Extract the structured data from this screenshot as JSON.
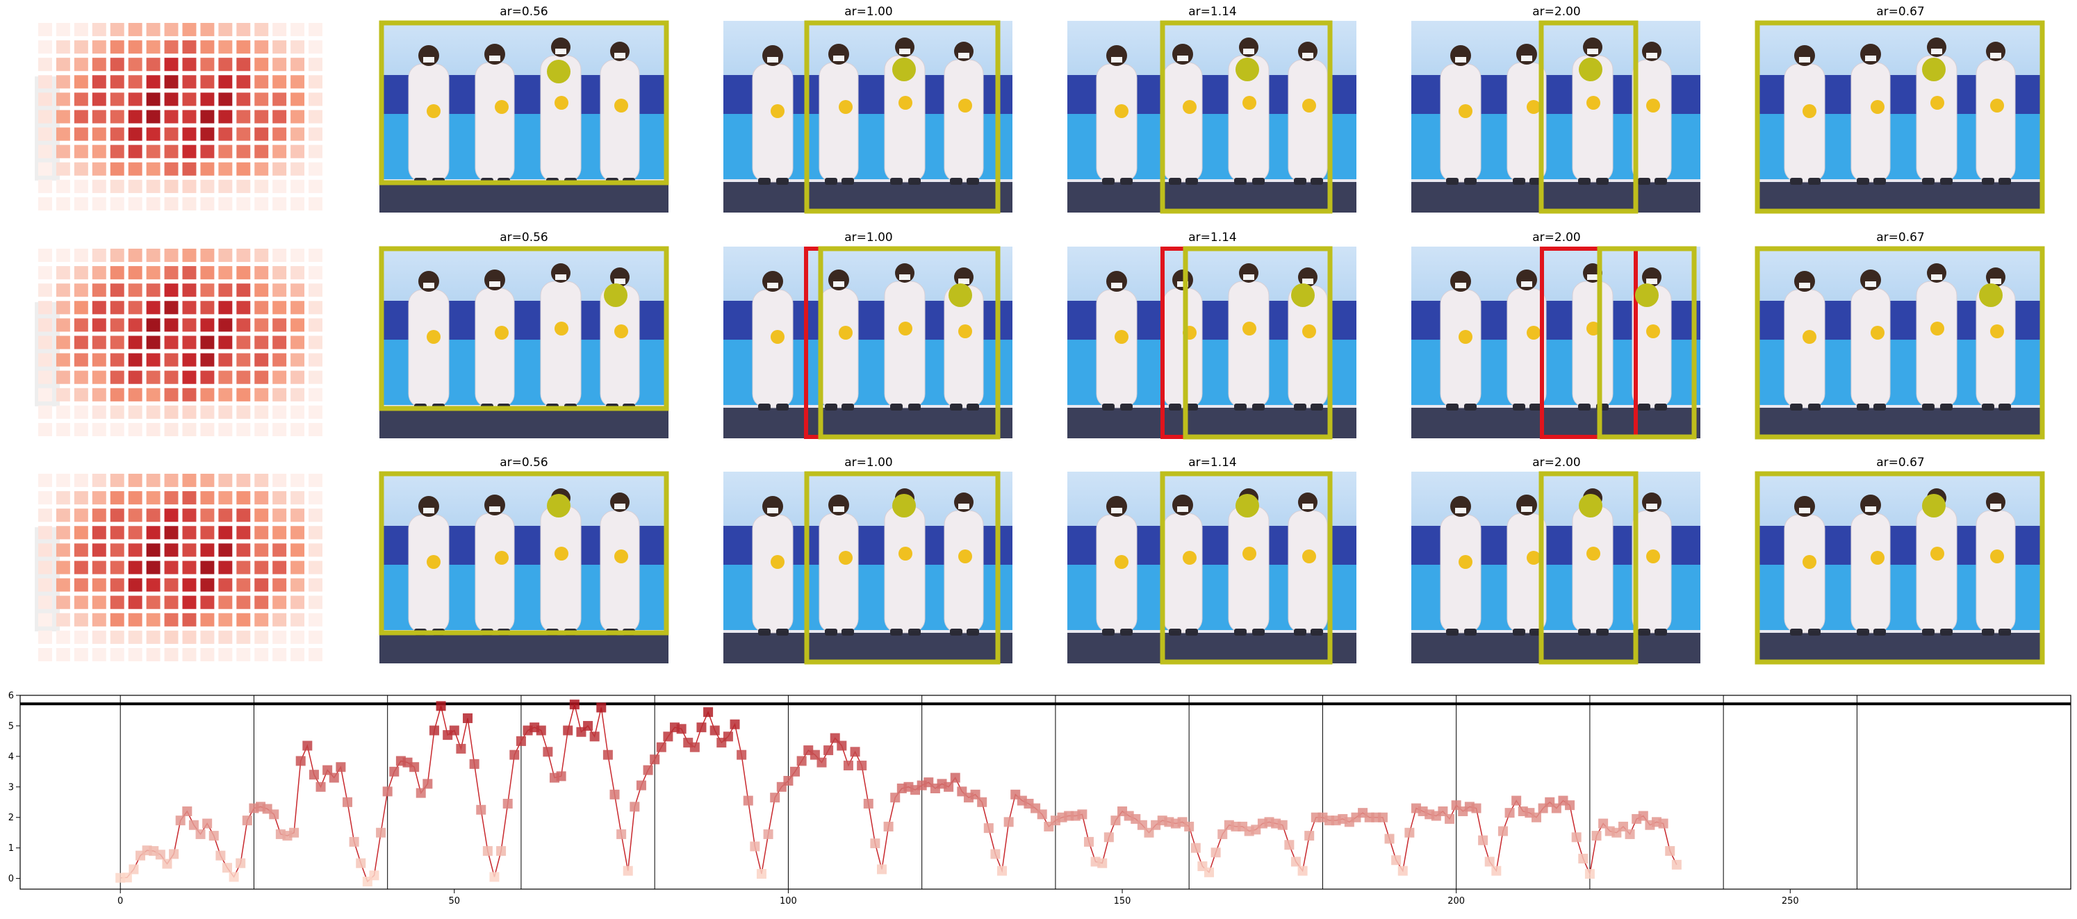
{
  "panel_titles": [
    "ar=0.56",
    "ar=1.00",
    "ar=1.14",
    "ar=2.00",
    "ar=0.67"
  ],
  "chart_data": {
    "type": "line",
    "xlim": [
      -15,
      292
    ],
    "ylim": [
      -0.35,
      6.0
    ],
    "x_ticks": [
      0,
      50,
      100,
      150,
      200,
      250
    ],
    "y_ticks": [
      0,
      1,
      2,
      3,
      4,
      5,
      6
    ],
    "hline": 5.72,
    "vlines": [
      0,
      20,
      40,
      60,
      80,
      100,
      120,
      140,
      160,
      180,
      200,
      220,
      240,
      260
    ],
    "marker": "square",
    "grid": false,
    "series": [
      {
        "x_start": 0,
        "values": [
          0.02,
          0.03,
          0.3,
          0.75,
          0.92,
          0.9,
          0.78,
          0.48,
          0.8,
          1.9,
          2.2,
          1.75,
          1.45,
          1.8,
          1.4,
          0.75,
          0.35,
          0.05,
          0.5,
          1.9,
          2.3,
          2.35,
          2.28,
          2.1,
          1.45,
          1.4,
          1.5,
          3.85,
          4.35,
          3.4,
          3.0,
          3.55,
          3.3,
          3.65,
          2.5,
          1.2,
          0.5,
          -0.1,
          0.1,
          1.5,
          2.85,
          3.5,
          3.85,
          3.8,
          3.65,
          2.8,
          3.1,
          4.85,
          5.65,
          4.7,
          4.85,
          4.25,
          5.25,
          3.75,
          2.25,
          0.9,
          0.05,
          0.9,
          2.45,
          4.05,
          4.5,
          4.85,
          4.95,
          4.85,
          4.15,
          3.3,
          3.35,
          4.85,
          5.7,
          4.8,
          5.0,
          4.65,
          5.6,
          4.05,
          2.75,
          1.45,
          0.25,
          2.35,
          3.05,
          3.55,
          3.9,
          4.3,
          4.65,
          4.95,
          4.9,
          4.45,
          4.3,
          4.95,
          5.45,
          4.85,
          4.45,
          4.65,
          5.05,
          4.05,
          2.55,
          1.05,
          0.15,
          1.45,
          2.65,
          3.0,
          3.2,
          3.5,
          3.85,
          4.2,
          4.05,
          3.8,
          4.2,
          4.6,
          4.35,
          3.7,
          4.15,
          3.7,
          2.45,
          1.15,
          0.3,
          1.7,
          2.65,
          2.95,
          3.0,
          2.9,
          3.05,
          3.15,
          2.95,
          3.1,
          3.0,
          3.3,
          2.85,
          2.65,
          2.75,
          2.5,
          1.65,
          0.8,
          0.25,
          1.85,
          2.75,
          2.55,
          2.45,
          2.3,
          2.1,
          1.7,
          1.9,
          2.0,
          2.05,
          2.05,
          2.1,
          1.2,
          0.55,
          0.5,
          1.35,
          1.9,
          2.2,
          2.05,
          1.95,
          1.75,
          1.5,
          1.75,
          1.9,
          1.85,
          1.8,
          1.85,
          1.7,
          1.0,
          0.4,
          0.2,
          0.85,
          1.45,
          1.75,
          1.7,
          1.7,
          1.55,
          1.6,
          1.8,
          1.85,
          1.8,
          1.75,
          1.1,
          0.55,
          0.25,
          1.4,
          2.0,
          2.0,
          1.9,
          1.9,
          1.95,
          1.85,
          2.0,
          2.15,
          2.0,
          2.0,
          2.0,
          1.3,
          0.6,
          0.25,
          1.5,
          2.3,
          2.2,
          2.1,
          2.05,
          2.2,
          1.95,
          2.4,
          2.2,
          2.35,
          2.3,
          1.25,
          0.55,
          0.25,
          1.55,
          2.15,
          2.55,
          2.2,
          2.15,
          2.0,
          2.3,
          2.5,
          2.3,
          2.55,
          2.4,
          1.35,
          0.65,
          0.15,
          1.4,
          1.8,
          1.55,
          1.5,
          1.7,
          1.45,
          1.95,
          2.05,
          1.75,
          1.85,
          1.8,
          0.9,
          0.45
        ]
      }
    ]
  }
}
